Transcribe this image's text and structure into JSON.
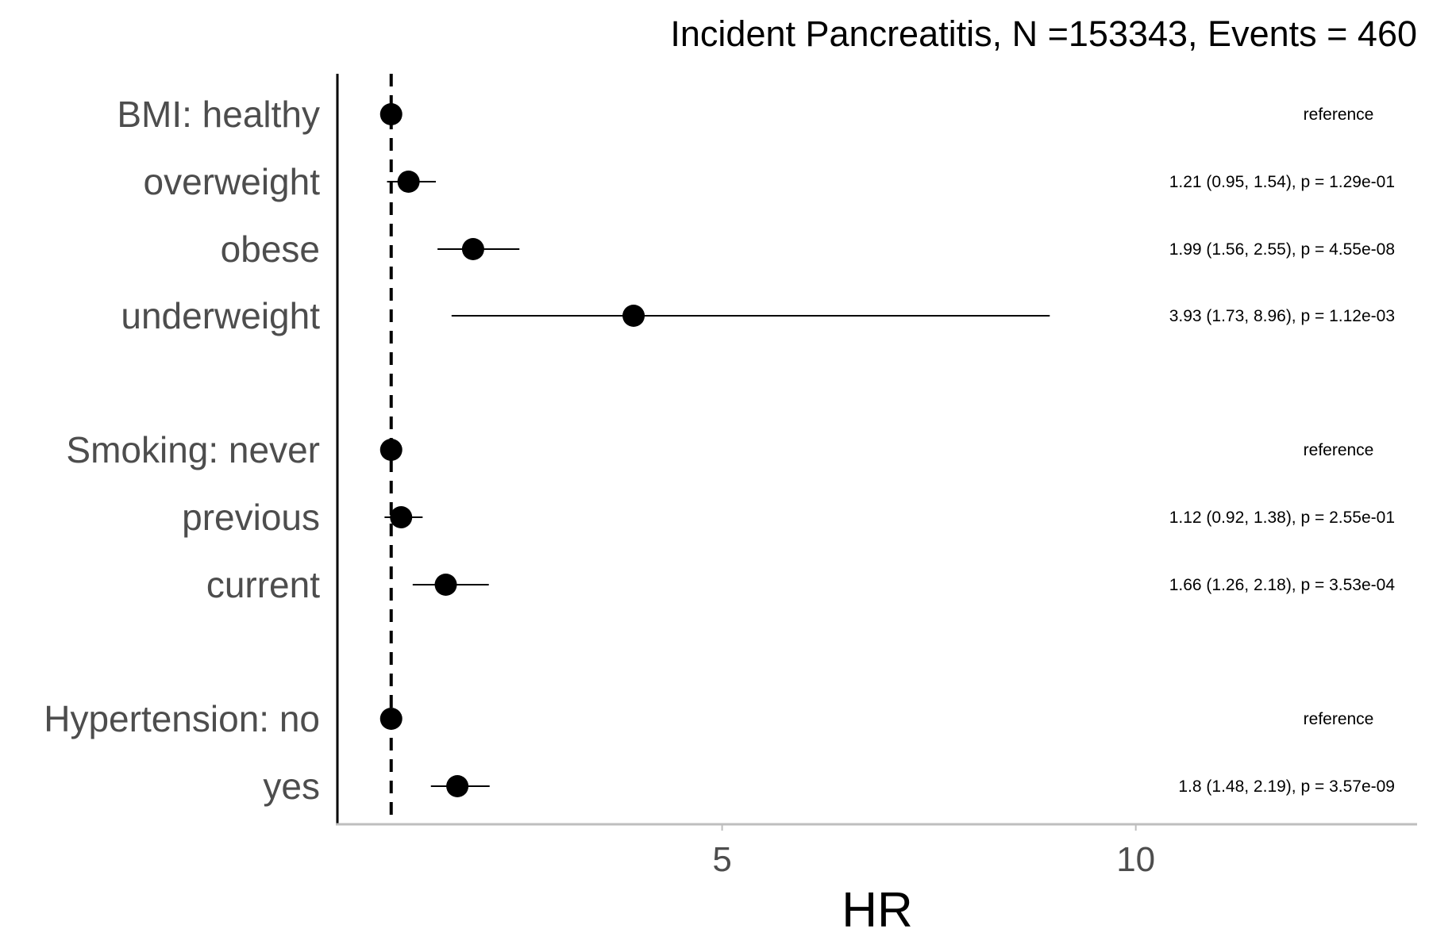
{
  "chart_data": {
    "type": "scatter",
    "subtype": "forest-plot",
    "title": "Incident Pancreatitis, N =153343, Events = 460",
    "xlabel": "HR",
    "ylabel": "",
    "xlim": [
      0.35,
      13.4
    ],
    "xticks": [
      5,
      10
    ],
    "xtick_labels": [
      "5",
      "10"
    ],
    "reference_line": 1,
    "grid": false,
    "colors": {
      "point": "#000000",
      "axis_x": "#bebebe",
      "axis_y": "#000000",
      "label": "#4d4d4d"
    },
    "rows": [
      {
        "label": "BMI: healthy",
        "hr": 1,
        "lower": null,
        "upper": null,
        "text": "reference"
      },
      {
        "label": "overweight",
        "hr": 1.21,
        "lower": 0.95,
        "upper": 1.54,
        "text": "1.21 (0.95, 1.54), p = 1.29e-01"
      },
      {
        "label": "obese",
        "hr": 1.99,
        "lower": 1.56,
        "upper": 2.55,
        "text": "1.99 (1.56, 2.55), p = 4.55e-08"
      },
      {
        "label": "underweight",
        "hr": 3.93,
        "lower": 1.73,
        "upper": 8.96,
        "text": "3.93 (1.73, 8.96), p = 1.12e-03"
      },
      {
        "label": "Smoking: never",
        "hr": 1,
        "lower": null,
        "upper": null,
        "text": "reference"
      },
      {
        "label": "previous",
        "hr": 1.12,
        "lower": 0.92,
        "upper": 1.38,
        "text": "1.12 (0.92, 1.38), p = 2.55e-01"
      },
      {
        "label": "current",
        "hr": 1.66,
        "lower": 1.26,
        "upper": 2.18,
        "text": "1.66 (1.26, 2.18), p = 3.53e-04"
      },
      {
        "label": "Hypertension: no",
        "hr": 1,
        "lower": null,
        "upper": null,
        "text": "reference"
      },
      {
        "label": "yes",
        "hr": 1.8,
        "lower": 1.48,
        "upper": 2.19,
        "text": "1.8 (1.48, 2.19), p = 3.57e-09"
      }
    ]
  }
}
